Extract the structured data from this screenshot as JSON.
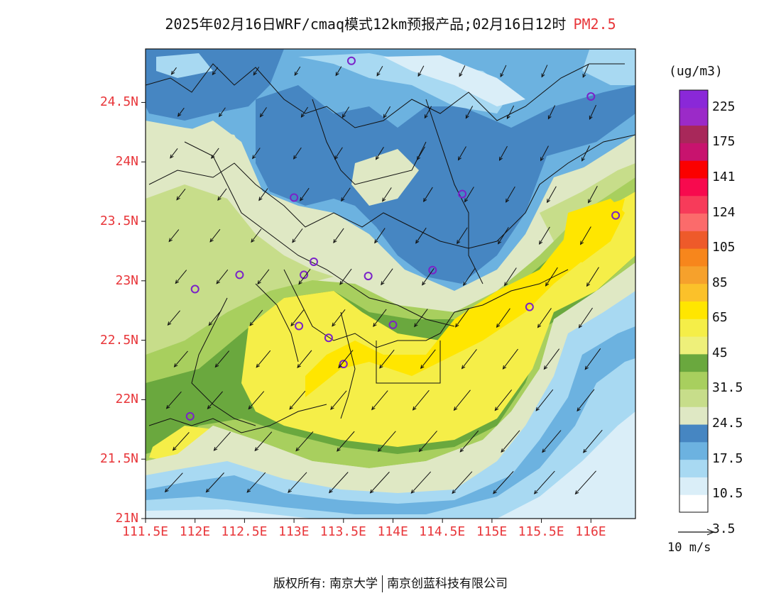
{
  "title": {
    "main": "2025年02月16日WRF/cmaq模式12km预报产品;02月16日12时",
    "pollutant": "PM2.5"
  },
  "axes": {
    "lat_ticks": [
      "24.5N",
      "24N",
      "23.5N",
      "23N",
      "22.5N",
      "22N",
      "21.5N",
      "21N"
    ],
    "lon_ticks": [
      "111.5E",
      "112E",
      "112.5E",
      "113E",
      "113.5E",
      "114E",
      "114.5E",
      "115E",
      "115.5E",
      "116E"
    ],
    "lat_values": [
      24.5,
      24.0,
      23.5,
      23.0,
      22.5,
      22.0,
      21.5,
      21.0
    ],
    "lon_values": [
      111.5,
      112.0,
      112.5,
      113.0,
      113.5,
      114.0,
      114.5,
      115.0,
      115.5,
      116.0
    ],
    "lat_range": [
      21.0,
      24.95
    ],
    "lon_range": [
      111.5,
      116.45
    ],
    "tick_color": "#e8363a"
  },
  "colorbar": {
    "unit": "(ug/m3)",
    "labels": [
      "225",
      "175",
      "141",
      "124",
      "105",
      "85",
      "65",
      "45",
      "31.5",
      "24.5",
      "17.5",
      "10.5",
      "3.5"
    ],
    "colors_bottom_to_top": [
      "#ffffff",
      "#daeef8",
      "#a8d9f2",
      "#6cb2e0",
      "#4686c2",
      "#dfe8c4",
      "#c7dd8a",
      "#a8cf5e",
      "#6aa83e",
      "#eef07a",
      "#f5ee48",
      "#ffe600",
      "#fbc12a",
      "#f6a12c",
      "#f7861c",
      "#ee5a2a",
      "#fb6b6b",
      "#f73b5a",
      "#f70a4e",
      "#fb0000",
      "#c8136e",
      "#a8285a",
      "#9b2ac8",
      "#8a28d8"
    ]
  },
  "reference_vector": {
    "label": "10 m/s"
  },
  "footer": {
    "left": "版权所有: 南京大学",
    "right": "南京创蓝科技有限公司"
  },
  "stations": [
    {
      "lon": 113.58,
      "lat": 24.85
    },
    {
      "lon": 116.0,
      "lat": 24.55
    },
    {
      "lon": 113.0,
      "lat": 23.7
    },
    {
      "lon": 114.7,
      "lat": 23.73
    },
    {
      "lon": 116.25,
      "lat": 23.55
    },
    {
      "lon": 112.0,
      "lat": 22.93
    },
    {
      "lon": 112.45,
      "lat": 23.05
    },
    {
      "lon": 113.1,
      "lat": 23.05
    },
    {
      "lon": 113.2,
      "lat": 23.16
    },
    {
      "lon": 113.75,
      "lat": 23.04
    },
    {
      "lon": 114.4,
      "lat": 23.09
    },
    {
      "lon": 115.38,
      "lat": 22.78
    },
    {
      "lon": 113.05,
      "lat": 22.62
    },
    {
      "lon": 113.35,
      "lat": 22.52
    },
    {
      "lon": 114.0,
      "lat": 22.63
    },
    {
      "lon": 113.5,
      "lat": 22.3
    },
    {
      "lon": 111.95,
      "lat": 21.86
    }
  ]
}
